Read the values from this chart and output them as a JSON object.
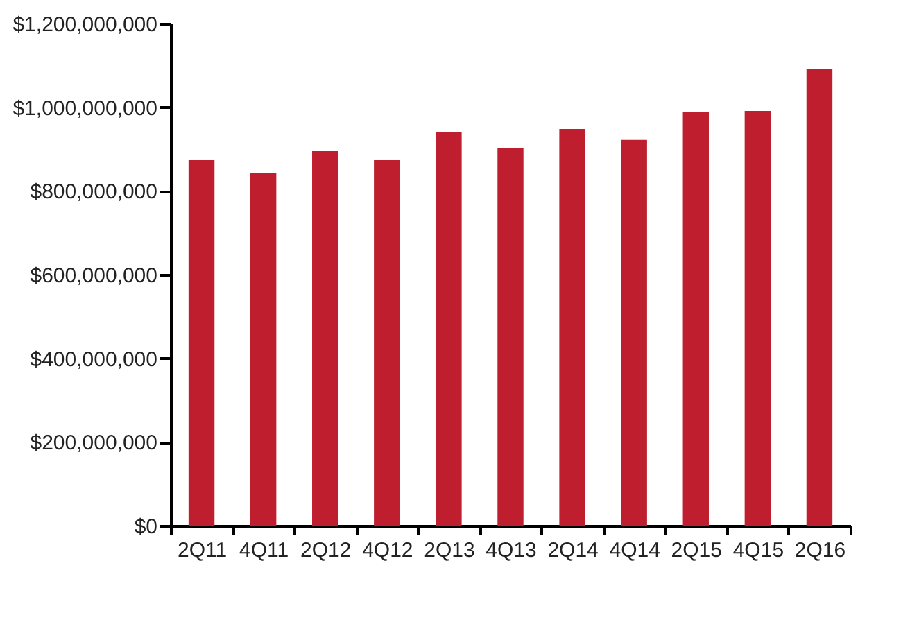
{
  "chart_data": {
    "type": "bar",
    "categories": [
      "2Q11",
      "4Q11",
      "2Q12",
      "4Q12",
      "2Q13",
      "4Q13",
      "2Q14",
      "4Q14",
      "2Q15",
      "4Q15",
      "2Q16"
    ],
    "series": [
      {
        "color": "#be1e2d",
        "values": [
          875000000,
          842000000,
          895000000,
          875000000,
          941000000,
          902000000,
          948000000,
          922000000,
          988000000,
          991000000,
          1091000000
        ]
      }
    ],
    "ylim": [
      0,
      1200000000
    ],
    "yticks": [
      {
        "value": 0,
        "label": "$0"
      },
      {
        "value": 200000000,
        "label": "$200,000,000"
      },
      {
        "value": 400000000,
        "label": "$400,000,000"
      },
      {
        "value": 600000000,
        "label": "$600,000,000"
      },
      {
        "value": 800000000,
        "label": "$800,000,000"
      },
      {
        "value": 1000000000,
        "label": "$1,000,000,000"
      },
      {
        "value": 1200000000,
        "label": "$1,200,000,000"
      }
    ],
    "grid": false
  }
}
